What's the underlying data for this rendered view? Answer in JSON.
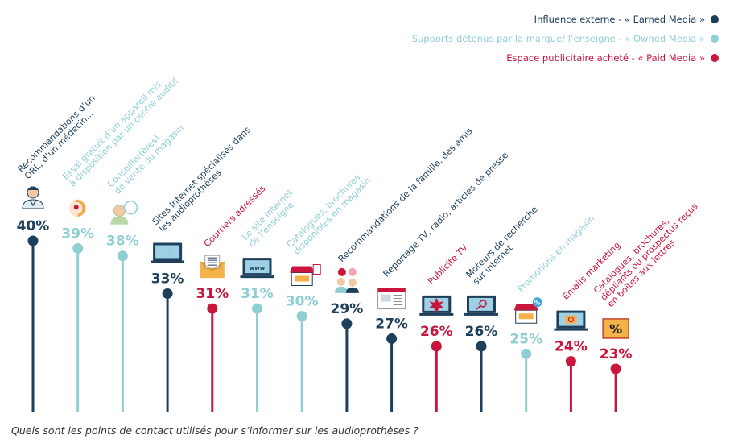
{
  "legend": {
    "earned": "Influence externe - « Earned Media »",
    "owned": "Supports détenus par la marque/ l’enseigne - « Owned Media »",
    "paid": "Espace publicitaire acheté - « Paid Media »"
  },
  "caption": "Quels sont les points de contact utilisés pour s’informer sur les audioprothèses ?",
  "colors": {
    "earned": "#1d3f5b",
    "owned": "#8fcfd3",
    "paid": "#c8163c"
  },
  "chart_data": {
    "type": "lollipop",
    "unit": "%",
    "ylim": [
      0,
      40
    ],
    "categories": [
      {
        "label": [
          "Recommandations d’un",
          "ORL, d’un médecin..."
        ],
        "value": 40,
        "value_label": "40%",
        "group": "earned",
        "icon": "doctor-icon"
      },
      {
        "label": [
          "Essai gratuit d’un appareil mis",
          "à disposition par un centre auditif"
        ],
        "value": 39,
        "value_label": "39%",
        "group": "owned",
        "icon": "hearing-aid-icon"
      },
      {
        "label": [
          "Conseiller(ères)",
          "de vente du magasin"
        ],
        "value": 38,
        "value_label": "38%",
        "group": "owned",
        "icon": "salesperson-icon"
      },
      {
        "label": [
          "Sites Internet spécialisés dans",
          "les audioprothèses"
        ],
        "value": 33,
        "value_label": "33%",
        "group": "earned",
        "icon": "laptop-ear-icon"
      },
      {
        "label": [
          "Courriers adressés"
        ],
        "value": 31,
        "value_label": "31%",
        "group": "paid",
        "icon": "mail-icon"
      },
      {
        "label": [
          "Le site Internet",
          "de l’enseigne"
        ],
        "value": 31,
        "value_label": "31%",
        "group": "owned",
        "icon": "www-laptop-icon"
      },
      {
        "label": [
          "Catalogues, brochures",
          "disponibles en magasin"
        ],
        "value": 30,
        "value_label": "30%",
        "group": "owned",
        "icon": "store-brochure-icon"
      },
      {
        "label": [
          "Recommandations de la famille, des amis"
        ],
        "value": 29,
        "value_label": "29%",
        "group": "earned",
        "icon": "people-chat-icon"
      },
      {
        "label": [
          "Reportage TV, radio, articles de presse"
        ],
        "value": 27,
        "value_label": "27%",
        "group": "earned",
        "icon": "newspaper-icon"
      },
      {
        "label": [
          "Publicité TV"
        ],
        "value": 26,
        "value_label": "26%",
        "group": "paid",
        "icon": "tv-ad-icon"
      },
      {
        "label": [
          "Moteurs de recherche",
          "sur internet"
        ],
        "value": 26,
        "value_label": "26%",
        "group": "earned",
        "icon": "search-laptop-icon"
      },
      {
        "label": [
          "Promotions en magasin"
        ],
        "value": 25,
        "value_label": "25%",
        "group": "owned",
        "icon": "store-promo-icon"
      },
      {
        "label": [
          "Emails marketing"
        ],
        "value": 24,
        "value_label": "24%",
        "group": "paid",
        "icon": "email-laptop-icon"
      },
      {
        "label": [
          "Catalogues, brochures,",
          "dépliants ou prospectus reçus",
          "en boîtes aux lettres"
        ],
        "value": 23,
        "value_label": "23%",
        "group": "paid",
        "icon": "discount-brochure-icon"
      }
    ]
  }
}
